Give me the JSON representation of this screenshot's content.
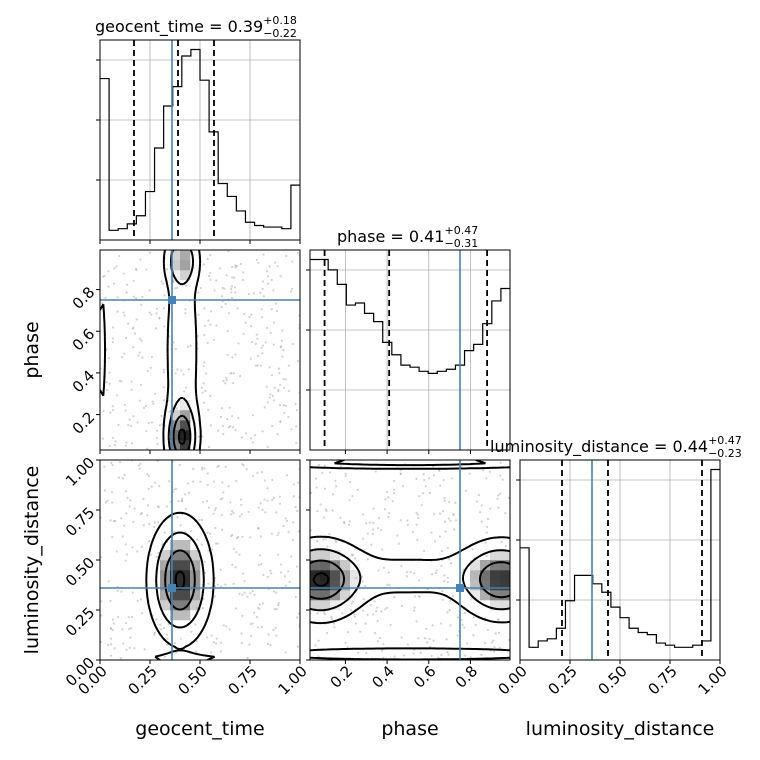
{
  "chart_data": {
    "type": "corner",
    "parameters": [
      "geocent_time",
      "phase",
      "luminosity_distance"
    ],
    "axis_labels": {
      "geocent_time": "geocent_time",
      "phase": "phase",
      "luminosity_distance": "luminosity_distance"
    },
    "ranges": {
      "geocent_time": [
        0.0,
        1.0
      ],
      "phase": [
        0.03,
        0.99
      ],
      "luminosity_distance": [
        0.0,
        1.0
      ]
    },
    "ticks": {
      "geocent_time": [
        0.0,
        0.25,
        0.5,
        0.75,
        1.0
      ],
      "phase": [
        0.2,
        0.4,
        0.6,
        0.8
      ],
      "luminosity_distance": [
        0.0,
        0.25,
        0.5,
        0.75,
        1.0
      ]
    },
    "tick_labels": {
      "geocent_time": [
        "0.00",
        "0.25",
        "0.50",
        "0.75",
        "1.00"
      ],
      "phase": [
        "0.2",
        "0.4",
        "0.6",
        "0.8"
      ],
      "luminosity_distance": [
        "0.00",
        "0.25",
        "0.50",
        "0.75",
        "1.00"
      ]
    },
    "truths": {
      "geocent_time": 0.36,
      "phase": 0.75,
      "luminosity_distance": 0.36
    },
    "titles": [
      {
        "param": "geocent_time",
        "lead": "geocent_time = 0.39",
        "plus": "+0.18",
        "minus": "−0.22"
      },
      {
        "param": "phase",
        "lead": "phase = 0.41",
        "plus": "+0.47",
        "minus": "−0.31"
      },
      {
        "param": "luminosity_distance",
        "lead": "luminosity_distance = 0.44",
        "plus": "+0.47",
        "minus": "−0.23"
      }
    ],
    "quantiles": {
      "geocent_time": [
        0.17,
        0.39,
        0.57
      ],
      "phase": [
        0.1,
        0.41,
        0.88
      ],
      "luminosity_distance": [
        0.21,
        0.44,
        0.91
      ]
    },
    "histograms": {
      "geocent_time": {
        "edges_range": [
          0.0,
          1.0
        ],
        "counts": [
          1.0,
          0.06,
          0.07,
          0.1,
          0.15,
          0.3,
          0.57,
          0.83,
          0.95,
          1.14,
          1.18,
          0.99,
          0.67,
          0.35,
          0.27,
          0.18,
          0.11,
          0.09,
          0.08,
          0.08,
          0.07,
          0.34
        ]
      },
      "phase": {
        "edges_range": [
          0.03,
          0.99
        ],
        "counts": [
          0.92,
          0.92,
          0.87,
          0.8,
          0.7,
          0.71,
          0.66,
          0.62,
          0.52,
          0.46,
          0.41,
          0.4,
          0.38,
          0.37,
          0.38,
          0.39,
          0.41,
          0.48,
          0.51,
          0.61,
          0.72,
          0.78
        ]
      },
      "luminosity_distance": {
        "edges_range": [
          0.0,
          1.0
        ],
        "counts": [
          0.53,
          0.06,
          0.09,
          0.1,
          0.15,
          0.28,
          0.4,
          0.4,
          0.36,
          0.32,
          0.25,
          0.2,
          0.15,
          0.13,
          0.12,
          0.08,
          0.07,
          0.06,
          0.06,
          0.07,
          0.09,
          0.9
        ]
      }
    },
    "grid": true
  }
}
